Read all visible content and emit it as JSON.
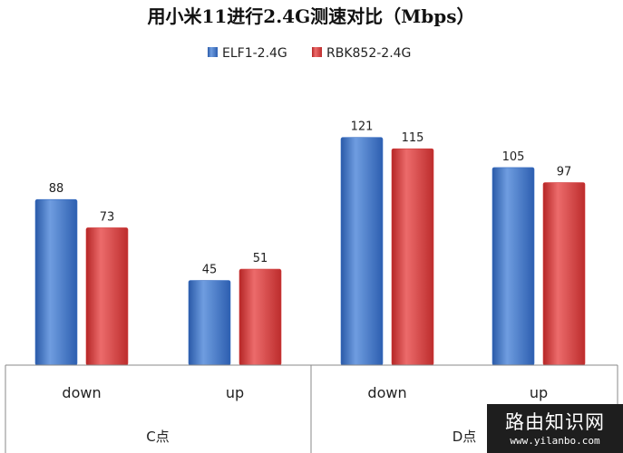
{
  "chart_data": {
    "type": "bar",
    "title": "用小米11进行2.4G测速对比（Mbps）",
    "groups": [
      "C点",
      "D点"
    ],
    "categories": [
      "down",
      "up",
      "down",
      "up"
    ],
    "series": [
      {
        "name": "ELF1-2.4G",
        "values": [
          88,
          45,
          121,
          105
        ],
        "color": "#3a6fc4"
      },
      {
        "name": "RBK852-2.4G",
        "values": [
          73,
          51,
          115,
          97
        ],
        "color": "#d23b3b"
      }
    ],
    "ylim": [
      0,
      130
    ],
    "grid": false,
    "legend_position": "top"
  },
  "watermark": {
    "name": "路由知识网",
    "url": "www.yilanbo.com"
  }
}
